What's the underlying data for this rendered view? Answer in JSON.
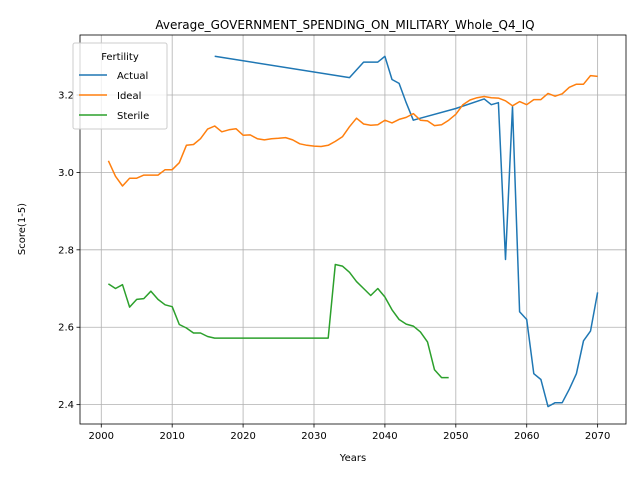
{
  "chart_data": {
    "type": "line",
    "title": "Average_GOVERNMENT_SPENDING_ON_MILITARY_Whole_Q4_IQ",
    "xlabel": "Years",
    "ylabel": "Score(1-5)",
    "xlim": [
      1997,
      2074
    ],
    "ylim": [
      2.35,
      3.355
    ],
    "xticks": [
      2000,
      2010,
      2020,
      2030,
      2040,
      2050,
      2060,
      2070
    ],
    "yticks": [
      2.4,
      2.6,
      2.8,
      3.0,
      3.2
    ],
    "ytick_labels": [
      "2.4",
      "2.6",
      "2.8",
      "3.0",
      "3.2"
    ],
    "grid": true,
    "legend": {
      "title": "Fertility",
      "placement": "top-left"
    },
    "series": [
      {
        "name": "Actual",
        "color": "#1f77b4",
        "x": [
          2016,
          2035,
          2037,
          2039,
          2040,
          2041,
          2042,
          2043,
          2044,
          2045,
          2050,
          2054,
          2055,
          2056,
          2057,
          2058,
          2059,
          2060,
          2061,
          2062,
          2063,
          2064,
          2065,
          2066,
          2067,
          2068,
          2069,
          2070
        ],
        "y": [
          3.3,
          3.245,
          3.285,
          3.285,
          3.3,
          3.24,
          3.23,
          3.18,
          3.135,
          3.14,
          3.165,
          3.19,
          3.175,
          3.18,
          2.775,
          3.17,
          2.64,
          2.62,
          2.48,
          2.465,
          2.395,
          2.405,
          2.405,
          2.44,
          2.48,
          2.565,
          2.59,
          2.69
        ]
      },
      {
        "name": "Ideal",
        "color": "#ff7f0e",
        "x": [
          2001,
          2002,
          2003,
          2004,
          2005,
          2006,
          2007,
          2008,
          2009,
          2010,
          2011,
          2012,
          2013,
          2014,
          2015,
          2016,
          2017,
          2018,
          2019,
          2020,
          2021,
          2022,
          2023,
          2024,
          2025,
          2026,
          2027,
          2028,
          2029,
          2030,
          2031,
          2032,
          2033,
          2034,
          2035,
          2036,
          2037,
          2038,
          2039,
          2040,
          2041,
          2042,
          2043,
          2044,
          2045,
          2046,
          2047,
          2048,
          2049,
          2050,
          2051,
          2052,
          2053,
          2054,
          2055,
          2056,
          2057,
          2058,
          2059,
          2060,
          2061,
          2062,
          2063,
          2064,
          2065,
          2066,
          2067,
          2068,
          2069,
          2070
        ],
        "y": [
          3.03,
          2.99,
          2.965,
          2.985,
          2.985,
          2.993,
          2.993,
          2.993,
          3.007,
          3.007,
          3.025,
          3.07,
          3.072,
          3.087,
          3.112,
          3.12,
          3.105,
          3.11,
          3.113,
          3.096,
          3.097,
          3.087,
          3.084,
          3.087,
          3.088,
          3.09,
          3.084,
          3.074,
          3.07,
          3.068,
          3.067,
          3.07,
          3.08,
          3.092,
          3.118,
          3.14,
          3.125,
          3.122,
          3.123,
          3.135,
          3.128,
          3.137,
          3.142,
          3.152,
          3.135,
          3.133,
          3.121,
          3.123,
          3.135,
          3.15,
          3.175,
          3.187,
          3.193,
          3.196,
          3.193,
          3.192,
          3.185,
          3.172,
          3.183,
          3.175,
          3.188,
          3.188,
          3.204,
          3.197,
          3.203,
          3.22,
          3.228,
          3.228,
          3.25,
          3.248
        ]
      },
      {
        "name": "Sterile",
        "color": "#2ca02c",
        "x": [
          2001,
          2002,
          2003,
          2004,
          2005,
          2006,
          2007,
          2008,
          2009,
          2010,
          2011,
          2012,
          2013,
          2014,
          2015,
          2016,
          2017,
          2018,
          2019,
          2020,
          2021,
          2022,
          2023,
          2024,
          2025,
          2026,
          2027,
          2028,
          2029,
          2030,
          2031,
          2032,
          2033,
          2034,
          2035,
          2036,
          2037,
          2038,
          2039,
          2040,
          2041,
          2042,
          2043,
          2044,
          2045,
          2046,
          2047,
          2048,
          2049
        ],
        "y": [
          2.712,
          2.7,
          2.71,
          2.652,
          2.672,
          2.674,
          2.693,
          2.672,
          2.658,
          2.653,
          2.607,
          2.598,
          2.585,
          2.585,
          2.576,
          2.572,
          2.572,
          2.572,
          2.572,
          2.572,
          2.572,
          2.572,
          2.572,
          2.572,
          2.572,
          2.572,
          2.572,
          2.572,
          2.572,
          2.572,
          2.572,
          2.572,
          2.762,
          2.758,
          2.742,
          2.718,
          2.7,
          2.682,
          2.7,
          2.678,
          2.645,
          2.62,
          2.608,
          2.603,
          2.588,
          2.562,
          2.49,
          2.47,
          2.47
        ]
      }
    ]
  }
}
